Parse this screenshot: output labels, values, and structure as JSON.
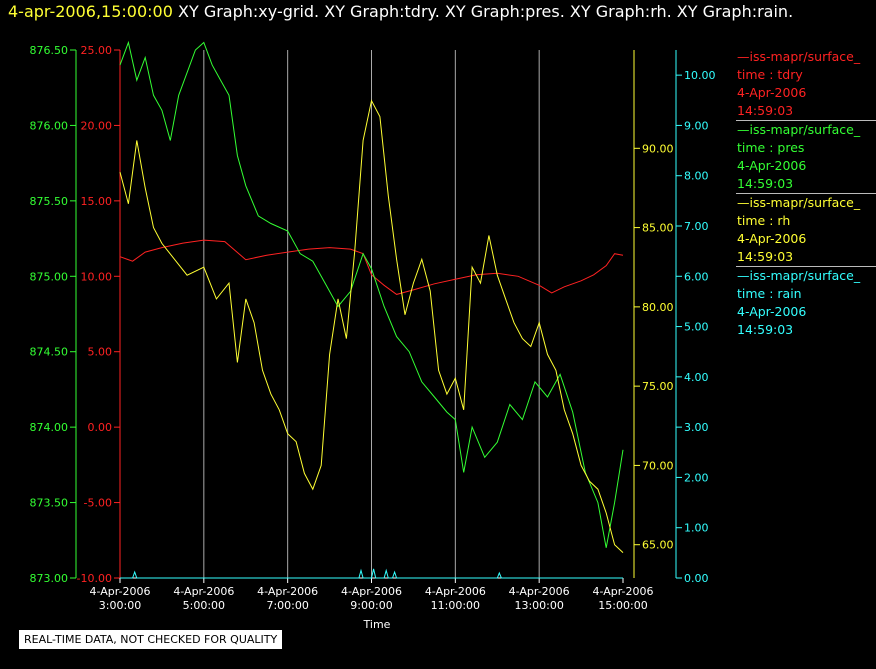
{
  "header": {
    "timestamp": "4-apr-2006,15:00:00",
    "graphs": "XY Graph:xy-grid.  XY Graph:tdry.  XY Graph:pres.  XY Graph:rh.  XY Graph:rain."
  },
  "footer": {
    "note": "REAL-TIME DATA, NOT CHECKED FOR QUALITY"
  },
  "legend": [
    {
      "source": "—iss-mapr/surface_",
      "var": "time : tdry",
      "date": "4-Apr-2006",
      "time": "14:59:03",
      "color": "#ff2222"
    },
    {
      "source": "—iss-mapr/surface_",
      "var": "time : pres",
      "date": "4-Apr-2006",
      "time": "14:59:03",
      "color": "#33ff33"
    },
    {
      "source": "—iss-mapr/surface_",
      "var": "time : rh",
      "date": "4-Apr-2006",
      "time": "14:59:03",
      "color": "#ffff33"
    },
    {
      "source": "—iss-mapr/surface_",
      "var": "time : rain",
      "date": "4-Apr-2006",
      "time": "14:59:03",
      "color": "#33ffff"
    }
  ],
  "chart_data": {
    "type": "line",
    "xlabel": "Time",
    "x_ticks": [
      {
        "date": "4-Apr-2006",
        "time": "3:00:00",
        "hour": 3
      },
      {
        "date": "4-Apr-2006",
        "time": "5:00:00",
        "hour": 5
      },
      {
        "date": "4-Apr-2006",
        "time": "7:00:00",
        "hour": 7
      },
      {
        "date": "4-Apr-2006",
        "time": "9:00:00",
        "hour": 9
      },
      {
        "date": "4-Apr-2006",
        "time": "11:00:00",
        "hour": 11
      },
      {
        "date": "4-Apr-2006",
        "time": "13:00:00",
        "hour": 13
      },
      {
        "date": "4-Apr-2006",
        "time": "15:00:00",
        "hour": 15
      }
    ],
    "xlim_hours": [
      3,
      15
    ],
    "grid": "vertical",
    "axes": {
      "tdry": {
        "color": "#ff2222",
        "range": [
          -10,
          25
        ],
        "ticks": [
          "-10.00",
          "-5.00",
          "0.00",
          "5.00",
          "10.00",
          "15.00",
          "20.00",
          "25.00"
        ]
      },
      "pres": {
        "color": "#33ff33",
        "range": [
          873.0,
          876.5
        ],
        "ticks": [
          "873.00",
          "873.50",
          "874.00",
          "874.50",
          "875.00",
          "875.50",
          "876.00",
          "876.50"
        ]
      },
      "rh": {
        "color": "#ffff33",
        "range": [
          62.9,
          96.2
        ],
        "ticks": [
          "65.00",
          "70.00",
          "75.00",
          "80.00",
          "85.00",
          "90.00"
        ]
      },
      "rain": {
        "color": "#33ffff",
        "range": [
          0,
          10.5
        ],
        "ticks": [
          "0.00",
          "1.00",
          "2.00",
          "3.00",
          "4.00",
          "5.00",
          "6.00",
          "7.00",
          "8.00",
          "9.00",
          "10.00"
        ]
      }
    },
    "series": [
      {
        "key": "tdry",
        "color": "#ff2222",
        "x": [
          3.0,
          3.3,
          3.6,
          4.0,
          4.5,
          5.0,
          5.5,
          6.0,
          6.5,
          7.0,
          7.5,
          8.0,
          8.5,
          8.8,
          9.0,
          9.3,
          9.6,
          10.0,
          10.5,
          11.0,
          11.5,
          12.0,
          12.5,
          13.0,
          13.3,
          13.6,
          14.0,
          14.3,
          14.6,
          14.8,
          15.0
        ],
        "y": [
          11.3,
          11.0,
          11.6,
          11.9,
          12.2,
          12.4,
          12.3,
          11.1,
          11.4,
          11.6,
          11.8,
          11.9,
          11.8,
          11.5,
          10.1,
          9.4,
          8.8,
          9.1,
          9.5,
          9.8,
          10.1,
          10.2,
          10.0,
          9.4,
          8.9,
          9.3,
          9.7,
          10.1,
          10.7,
          11.5,
          11.4
        ]
      },
      {
        "key": "pres",
        "color": "#33ff33",
        "x": [
          3.0,
          3.2,
          3.4,
          3.6,
          3.8,
          4.0,
          4.2,
          4.4,
          4.6,
          4.8,
          5.0,
          5.2,
          5.4,
          5.6,
          5.8,
          6.0,
          6.3,
          6.6,
          7.0,
          7.3,
          7.6,
          7.9,
          8.2,
          8.5,
          8.8,
          9.0,
          9.3,
          9.6,
          9.9,
          10.2,
          10.5,
          10.8,
          11.0,
          11.2,
          11.4,
          11.7,
          12.0,
          12.3,
          12.6,
          12.9,
          13.2,
          13.5,
          13.8,
          14.1,
          14.4,
          14.6,
          14.8,
          15.0
        ],
        "y": [
          876.4,
          876.55,
          876.3,
          876.45,
          876.2,
          876.1,
          875.9,
          876.2,
          876.35,
          876.5,
          876.55,
          876.4,
          876.3,
          876.2,
          875.8,
          875.6,
          875.4,
          875.35,
          875.3,
          875.15,
          875.1,
          874.95,
          874.8,
          874.9,
          875.15,
          875.05,
          874.8,
          874.6,
          874.5,
          874.3,
          874.2,
          874.1,
          874.05,
          873.7,
          874.0,
          873.8,
          873.9,
          874.15,
          874.05,
          874.3,
          874.2,
          874.35,
          874.1,
          873.7,
          873.5,
          873.2,
          873.5,
          873.85
        ]
      },
      {
        "key": "rh",
        "color": "#ffff33",
        "x": [
          3.0,
          3.2,
          3.4,
          3.6,
          3.8,
          4.0,
          4.3,
          4.6,
          5.0,
          5.3,
          5.6,
          5.8,
          6.0,
          6.2,
          6.4,
          6.6,
          6.8,
          7.0,
          7.2,
          7.4,
          7.6,
          7.8,
          8.0,
          8.2,
          8.4,
          8.6,
          8.8,
          9.0,
          9.2,
          9.4,
          9.6,
          9.8,
          10.0,
          10.2,
          10.4,
          10.6,
          10.8,
          11.0,
          11.2,
          11.4,
          11.6,
          11.8,
          12.0,
          12.2,
          12.4,
          12.6,
          12.8,
          13.0,
          13.2,
          13.4,
          13.6,
          13.8,
          14.0,
          14.2,
          14.4,
          14.6,
          14.8,
          15.0
        ],
        "y": [
          88.5,
          86.5,
          90.5,
          87.5,
          85.0,
          84.0,
          83.0,
          82.0,
          82.5,
          80.5,
          81.5,
          76.5,
          80.5,
          79.0,
          76.0,
          74.5,
          73.5,
          72.0,
          71.5,
          69.5,
          68.5,
          70.0,
          77.0,
          80.5,
          78.0,
          83.5,
          90.5,
          93.0,
          92.0,
          87.0,
          83.0,
          79.5,
          81.5,
          83.0,
          81.0,
          76.0,
          74.5,
          75.5,
          73.5,
          82.5,
          81.5,
          84.5,
          82.0,
          80.5,
          79.0,
          78.0,
          77.5,
          79.0,
          77.0,
          76.0,
          73.5,
          72.0,
          70.0,
          69.0,
          68.5,
          67.0,
          65.0,
          64.5
        ]
      },
      {
        "key": "rain",
        "color": "#33ffff",
        "x": [
          3.0,
          3.3,
          3.35,
          3.4,
          8.7,
          8.75,
          8.8,
          9.0,
          9.05,
          9.1,
          9.3,
          9.35,
          9.4,
          9.5,
          9.55,
          9.6,
          12.0,
          12.05,
          12.1,
          15.0
        ],
        "y": [
          0.0,
          0.0,
          0.12,
          0.0,
          0.0,
          0.15,
          0.0,
          0.0,
          0.18,
          0.0,
          0.0,
          0.15,
          0.0,
          0.0,
          0.12,
          0.0,
          0.0,
          0.1,
          0.0,
          0.0
        ]
      }
    ]
  }
}
